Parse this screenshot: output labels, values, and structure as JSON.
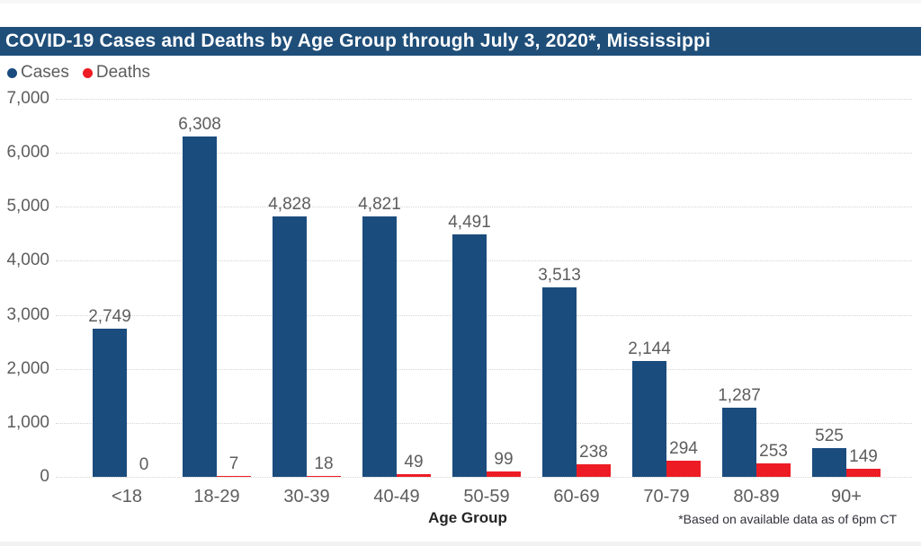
{
  "header": {
    "title": "COVID-19 Cases and Deaths by Age Group through July 3, 2020*, Mississippi",
    "background_color": "#1F4E79"
  },
  "legend": {
    "items": [
      {
        "label": "Cases",
        "color": "#1B4C7E"
      },
      {
        "label": "Deaths",
        "color": "#ED1C24"
      }
    ]
  },
  "footnote": "*Based on available data as of 6pm CT",
  "chart_data": {
    "type": "bar",
    "title": "COVID-19 Cases and Deaths by Age Group through July 3, 2020*, Mississippi",
    "categories": [
      "<18",
      "18-29",
      "30-39",
      "40-49",
      "50-59",
      "60-69",
      "70-79",
      "80-89",
      "90+"
    ],
    "series": [
      {
        "name": "Cases",
        "color": "#1B4C7E",
        "values": [
          2749,
          6308,
          4828,
          4821,
          4491,
          3513,
          2144,
          1287,
          525
        ]
      },
      {
        "name": "Deaths",
        "color": "#ED1C24",
        "values": [
          0,
          7,
          18,
          49,
          99,
          238,
          294,
          253,
          149
        ]
      }
    ],
    "xlabel": "Age Group",
    "ylabel": "",
    "ylim": [
      0,
      7000
    ],
    "ytick_step": 1000,
    "ytick_labels": [
      "0",
      "1,000",
      "2,000",
      "3,000",
      "4,000",
      "5,000",
      "6,000",
      "7,000"
    ],
    "grid": "horizontal-dotted",
    "legend_position": "top-left",
    "data_labels": "shown-above-bars"
  }
}
